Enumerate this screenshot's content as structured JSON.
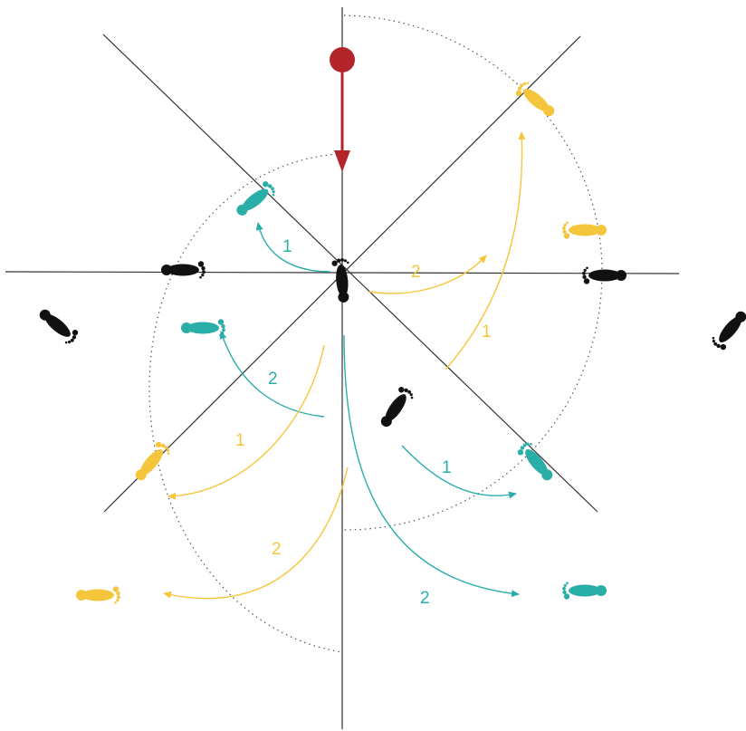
{
  "colors": {
    "black": "#111111",
    "teal": "#2aaea8",
    "yellow": "#f5c63c",
    "red": "#b4252b",
    "axis": "#333333",
    "dotted": "#555555"
  },
  "step_labels": [
    {
      "id": "teal-upper-left",
      "text": "1",
      "color": "teal"
    },
    {
      "id": "yellow-right-short",
      "text": "2",
      "color": "yellow"
    },
    {
      "id": "yellow-right-long",
      "text": "1",
      "color": "yellow"
    },
    {
      "id": "teal-left",
      "text": "2",
      "color": "teal"
    },
    {
      "id": "yellow-left-short",
      "text": "1",
      "color": "yellow"
    },
    {
      "id": "teal-lower-right",
      "text": "1",
      "color": "teal"
    },
    {
      "id": "yellow-left-long",
      "text": "2",
      "color": "yellow"
    },
    {
      "id": "teal-lower-right-long",
      "text": "2",
      "color": "teal"
    }
  ]
}
